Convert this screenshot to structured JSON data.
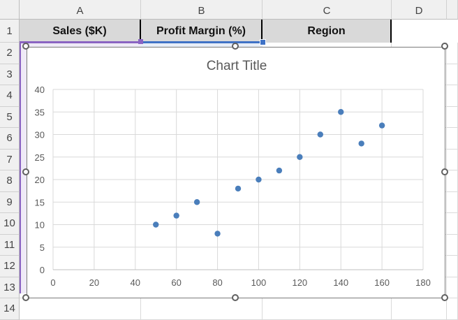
{
  "spreadsheet": {
    "columns": [
      "A",
      "B",
      "C",
      "D"
    ],
    "rows": [
      "1",
      "2",
      "3",
      "4",
      "5",
      "6",
      "7",
      "8",
      "9",
      "10",
      "11",
      "12",
      "13",
      "14"
    ],
    "header_cells": [
      "Sales ($K)",
      "Profit Margin (%)",
      "Region"
    ]
  },
  "chart_data": {
    "type": "scatter",
    "title": "Chart Title",
    "xlabel": "",
    "ylabel": "",
    "xlim": [
      0,
      180
    ],
    "ylim": [
      0,
      40
    ],
    "xticks": [
      "0",
      "20",
      "40",
      "60",
      "80",
      "100",
      "120",
      "140",
      "160",
      "180"
    ],
    "yticks": [
      "0",
      "5",
      "10",
      "15",
      "20",
      "25",
      "30",
      "35",
      "40"
    ],
    "grid": true,
    "color": "#4a7ebb",
    "x": [
      50,
      60,
      70,
      80,
      90,
      100,
      110,
      120,
      130,
      140,
      150,
      160
    ],
    "y": [
      10,
      12,
      15,
      8,
      18,
      20,
      22,
      25,
      30,
      35,
      28,
      32
    ]
  }
}
